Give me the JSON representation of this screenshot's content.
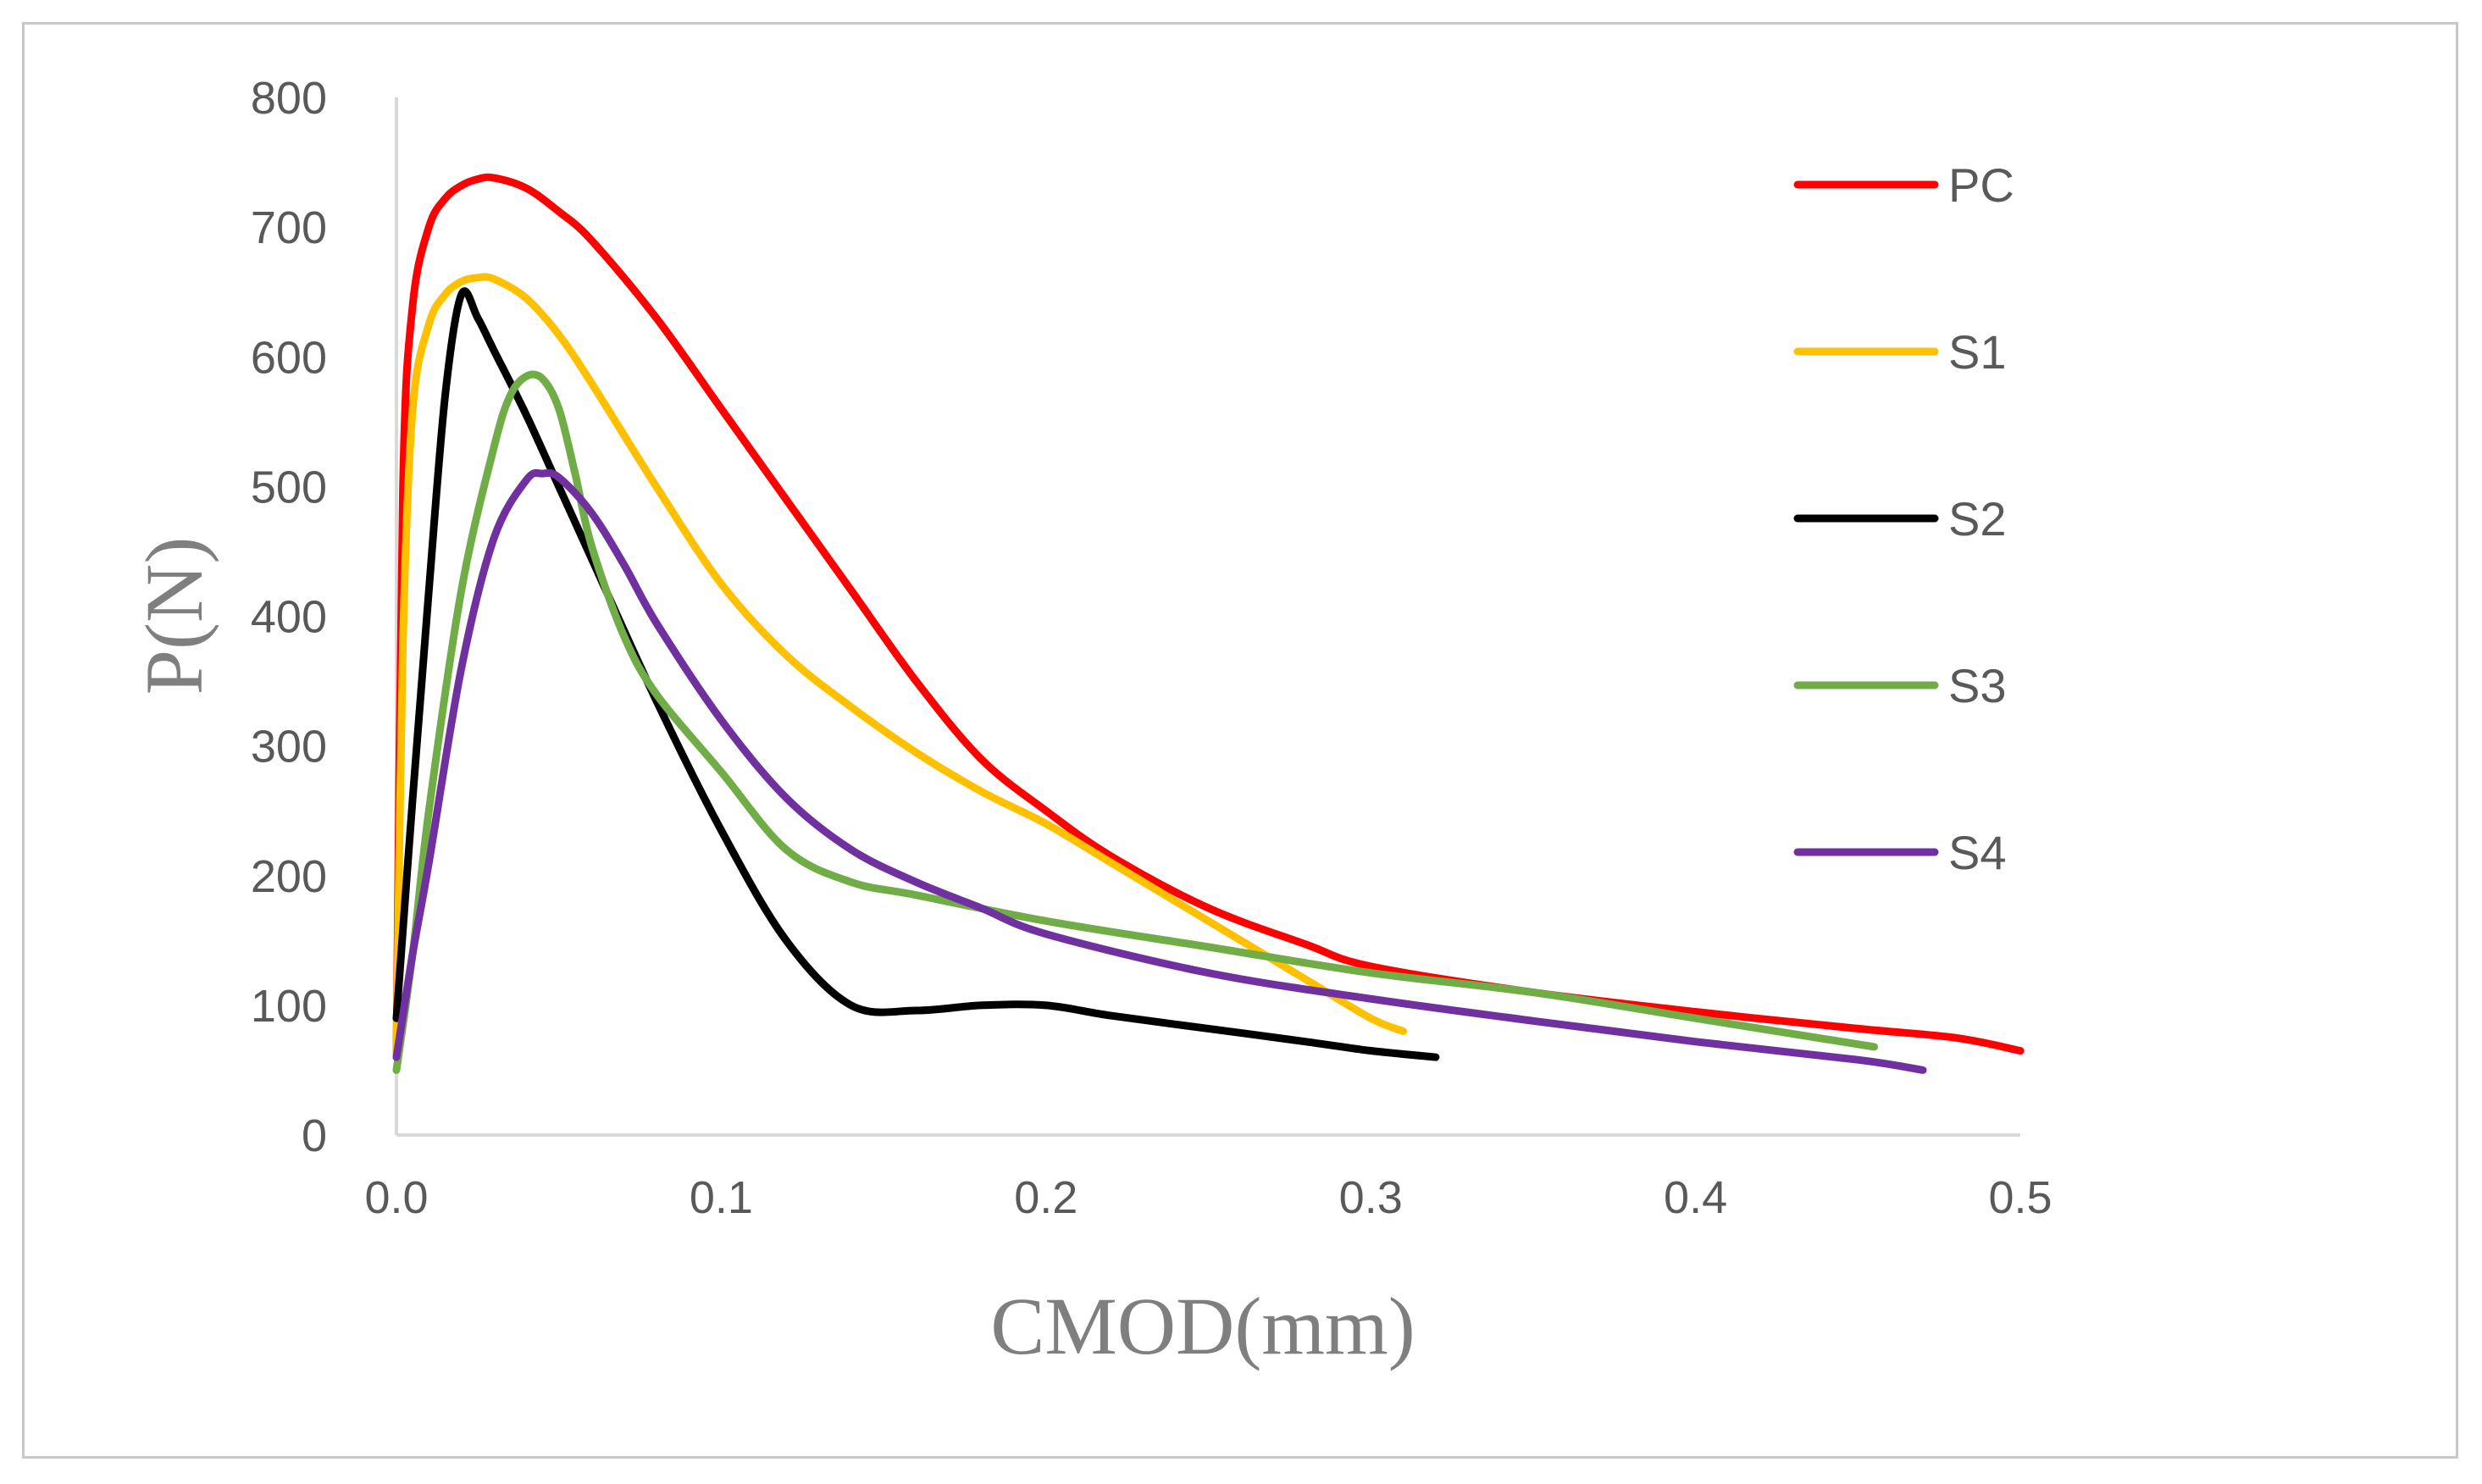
{
  "chart_data": {
    "type": "line",
    "title": "",
    "xlabel": "CMOD(mm)",
    "ylabel": "P(N)",
    "xlim": [
      0,
      0.5
    ],
    "ylim": [
      0,
      800
    ],
    "x_ticks": [
      "0.0",
      "0.1",
      "0.2",
      "0.3",
      "0.4",
      "0.5"
    ],
    "y_ticks": [
      "0",
      "100",
      "200",
      "300",
      "400",
      "500",
      "600",
      "700",
      "800"
    ],
    "grid": false,
    "legend_position": "right",
    "series": [
      {
        "name": "PC",
        "color": "#ff0000",
        "x": [
          0,
          0.002,
          0.005,
          0.01,
          0.015,
          0.02,
          0.025,
          0.03,
          0.04,
          0.05,
          0.06,
          0.08,
          0.1,
          0.12,
          0.14,
          0.16,
          0.18,
          0.2,
          0.22,
          0.25,
          0.28,
          0.3,
          0.35,
          0.4,
          0.45,
          0.48,
          0.5
        ],
        "y": [
          60,
          500,
          640,
          700,
          722,
          732,
          737,
          738,
          730,
          712,
          690,
          630,
          560,
          490,
          420,
          350,
          290,
          250,
          215,
          175,
          147,
          130,
          110,
          95,
          82,
          75,
          65
        ]
      },
      {
        "name": "S1",
        "color": "#ffc000",
        "x": [
          0,
          0.002,
          0.005,
          0.01,
          0.015,
          0.02,
          0.025,
          0.03,
          0.04,
          0.05,
          0.06,
          0.08,
          0.1,
          0.12,
          0.14,
          0.16,
          0.18,
          0.2,
          0.22,
          0.25,
          0.28,
          0.3,
          0.31
        ],
        "y": [
          60,
          380,
          560,
          625,
          648,
          658,
          661,
          660,
          645,
          617,
          580,
          500,
          425,
          370,
          330,
          295,
          265,
          240,
          210,
          165,
          120,
          90,
          80
        ]
      },
      {
        "name": "S2",
        "color": "#000000",
        "x": [
          0,
          0.005,
          0.01,
          0.015,
          0.02,
          0.025,
          0.03,
          0.04,
          0.05,
          0.06,
          0.08,
          0.1,
          0.12,
          0.14,
          0.16,
          0.18,
          0.2,
          0.22,
          0.25,
          0.28,
          0.3,
          0.32
        ],
        "y": [
          90,
          260,
          420,
          570,
          648,
          630,
          605,
          555,
          500,
          445,
          335,
          235,
          150,
          100,
          96,
          100,
          100,
          92,
          82,
          72,
          65,
          60
        ]
      },
      {
        "name": "S3",
        "color": "#70ad47",
        "x": [
          0,
          0.005,
          0.01,
          0.02,
          0.03,
          0.035,
          0.04,
          0.045,
          0.05,
          0.055,
          0.06,
          0.07,
          0.08,
          0.1,
          0.12,
          0.14,
          0.16,
          0.2,
          0.25,
          0.3,
          0.35,
          0.4,
          0.455
        ],
        "y": [
          50,
          140,
          250,
          420,
          530,
          570,
          585,
          583,
          560,
          510,
          455,
          385,
          340,
          280,
          220,
          195,
          185,
          165,
          145,
          125,
          110,
          90,
          68
        ]
      },
      {
        "name": "S4",
        "color": "#7030a0",
        "x": [
          0,
          0.005,
          0.01,
          0.02,
          0.03,
          0.04,
          0.045,
          0.05,
          0.06,
          0.07,
          0.08,
          0.1,
          0.12,
          0.14,
          0.16,
          0.18,
          0.2,
          0.25,
          0.3,
          0.35,
          0.4,
          0.45,
          0.47
        ],
        "y": [
          60,
          140,
          210,
          360,
          460,
          505,
          510,
          507,
          480,
          440,
          395,
          320,
          260,
          220,
          195,
          175,
          155,
          125,
          105,
          88,
          72,
          58,
          50
        ]
      }
    ]
  }
}
